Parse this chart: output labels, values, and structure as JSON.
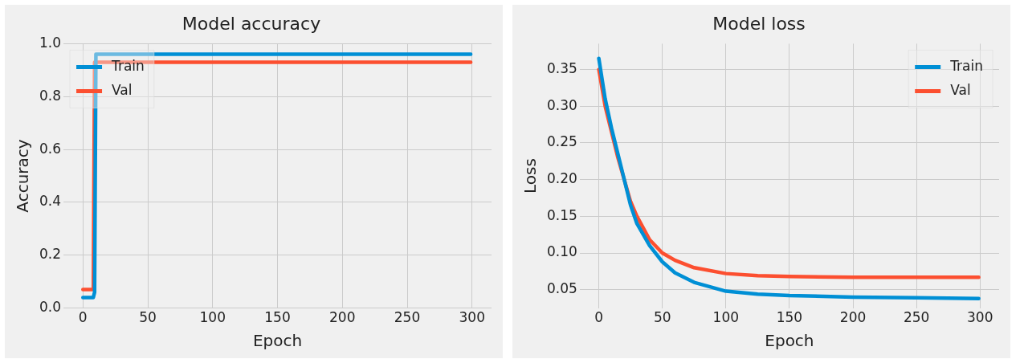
{
  "chart_data": [
    {
      "type": "line",
      "title": "Model accuracy",
      "xlabel": "Epoch",
      "ylabel": "Accuracy",
      "xlim": [
        -15,
        315
      ],
      "ylim": [
        0,
        1.0
      ],
      "xticks": [
        0,
        50,
        100,
        150,
        200,
        250,
        300
      ],
      "yticks": [
        {
          "value": 0,
          "label": "0.0"
        },
        {
          "value": 0.2,
          "label": "0.2"
        },
        {
          "value": 0.4,
          "label": "0.4"
        },
        {
          "value": 0.6,
          "label": "0.6"
        },
        {
          "value": 0.8,
          "label": "0.8"
        },
        {
          "value": 1.0,
          "label": "1.0"
        }
      ],
      "grid": true,
      "legend": "top left",
      "series": [
        {
          "name": "Train",
          "color": "#008fd5",
          "x": [
            0,
            8,
            9,
            10,
            299
          ],
          "values": [
            0.04,
            0.04,
            0.06,
            0.96,
            0.96
          ]
        },
        {
          "name": "Val",
          "color": "#fc4f30",
          "x": [
            0,
            8,
            9,
            299
          ],
          "values": [
            0.07,
            0.07,
            0.93,
            0.93
          ]
        }
      ]
    },
    {
      "type": "line",
      "title": "Model loss",
      "xlabel": "Epoch",
      "ylabel": "Loss",
      "xlim": [
        -15,
        315
      ],
      "ylim": [
        0.025,
        0.385
      ],
      "xticks": [
        0,
        50,
        100,
        150,
        200,
        250,
        300
      ],
      "yticks": [
        0.05,
        {
          "value": 0.1,
          "label": "0.10"
        },
        0.15,
        {
          "value": 0.2,
          "label": "0.20"
        },
        0.25,
        {
          "value": 0.3,
          "label": "0.30"
        },
        0.35
      ],
      "grid": true,
      "legend": "top right",
      "series": [
        {
          "name": "Train",
          "color": "#008fd5",
          "x": [
            0,
            5,
            10,
            15,
            20,
            25,
            30,
            40,
            50,
            60,
            75,
            100,
            125,
            150,
            200,
            250,
            299
          ],
          "values": [
            0.365,
            0.31,
            0.27,
            0.235,
            0.2,
            0.165,
            0.14,
            0.11,
            0.088,
            0.073,
            0.06,
            0.048,
            0.044,
            0.042,
            0.04,
            0.039,
            0.038
          ]
        },
        {
          "name": "Val",
          "color": "#fc4f30",
          "x": [
            0,
            5,
            10,
            15,
            20,
            25,
            30,
            40,
            50,
            60,
            75,
            100,
            125,
            150,
            200,
            250,
            299
          ],
          "values": [
            0.35,
            0.3,
            0.265,
            0.23,
            0.2,
            0.17,
            0.15,
            0.118,
            0.1,
            0.09,
            0.08,
            0.072,
            0.069,
            0.068,
            0.067,
            0.067,
            0.067
          ]
        }
      ]
    }
  ]
}
